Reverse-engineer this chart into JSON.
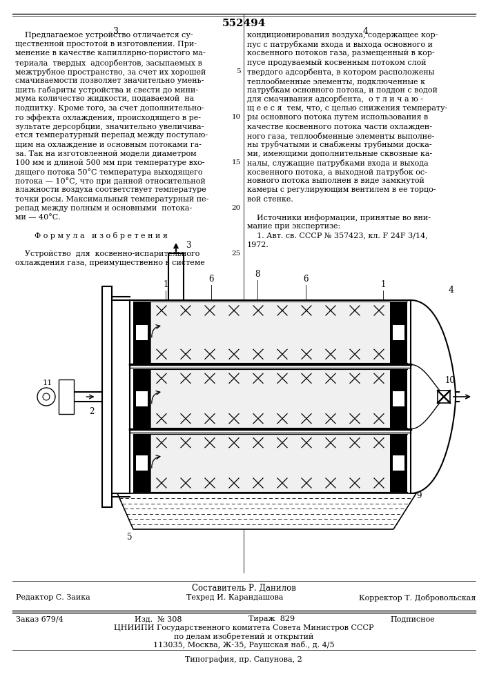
{
  "title": "552494",
  "page_bg": "#ffffff",
  "text_color": "#000000",
  "footer_composer": "Составитель Р. Данилов",
  "footer_editor": "Редактор С. Заика",
  "footer_techred": "Техред И. Карандашова",
  "footer_corrector": "Корректор Т. Добровольская",
  "footer_order": "Заказ 679/4",
  "footer_izd": "Изд.  № 308",
  "footer_tirazh": "Тираж  829",
  "footer_podpisnoe": "Подписное",
  "footer_tsniipi": "ЦНИИПИ Государственного комитета Совета Министров СССР",
  "footer_po_delam": "по делам изобретений и открытий",
  "footer_address": "113035, Москва, Ж-35, Раушская наб., д. 4/5",
  "footer_tipografia": "Типография, пр. Сапунова, 2",
  "left_lines": [
    "    Предлагаемое устройство отличается су-",
    "щественной простотой в изготовлении. При-",
    "менение в качестве капиллярно-пористого ма-",
    "териала  твердых  адсорбентов, засыпаемых в",
    "межтрубное пространство, за счет их хорошей",
    "смачиваемости позволяет значительно умень-",
    "шить габариты устройства и свести до мини-",
    "мума количество жидкости, подаваемой  на",
    "подпитку. Кроме того, за счет дополнительно-",
    "го эффекта охлаждения, происходящего в ре-",
    "зультате дерсорбции, значительно увеличива-",
    "ется температурный перепад между поступаю-",
    "щим на охлаждение и основным потоками га-",
    "за. Так на изготовленной модели диаметром",
    "100 мм и длиной 500 мм при температуре вхо-",
    "дящего потока 50°С температура выходящего",
    "потока — 10°С, что при данной относительной",
    "влажности воздуха соответствует температуре",
    "точки росы. Максимальный температурный пе-",
    "репад между полным и основными  потока-",
    "ми — 40°С.",
    "",
    "        Ф о р м у л а   и з о б р е т е н и я",
    "",
    "    Устройство  для  косвенно-испарительного",
    "охлаждения газа, преимущественно в системе"
  ],
  "right_lines": [
    "кондиционирования воздуха, содержащее кор-",
    "пус с патрубками входа и выхода основного и",
    "косвенного потоков газа, размещенный в кор-",
    "пусе продуваемый косвенным потоком слой",
    "твердого адсорбента, в котором расположены",
    "теплообменные элементы, подключенные к",
    "патрубкам основного потока, и поддон с водой",
    "для смачивания адсорбента,  о т л и ч а ю -",
    "щ е е с я  тем, что, с целью снижения температу-",
    "ры основного потока путем использования в",
    "качестве косвенного потока части охлажден-",
    "ного газа, теплообменные элементы выполне-",
    "ны трубчатыми и снабжены трубными доска-",
    "ми, имеющими дополнительные сквозные ка-",
    "налы, служащие патрубками входа и выхода",
    "косвенного потока, а выходной патрубок ос-",
    "новного потока выполнен в виде замкнутой",
    "камеры с регулирующим вентилем в ее торцо-",
    "вой стенке.",
    "",
    "    Источники информации, принятые во вни-",
    "мание при экспертизе:",
    "    1. Авт. св. СССР № 357423, кл. F 24F 3/14,",
    "1972."
  ]
}
